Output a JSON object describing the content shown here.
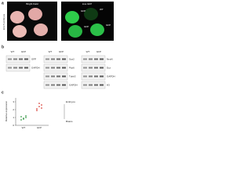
{
  "panel_a": {
    "label": "a",
    "side_label": "E12.5 embryos",
    "images": [
      {
        "title": "Bright Field"
      },
      {
        "title": "Live GFP",
        "tags": [
          "GFP",
          "WT",
          "GFP",
          "GFP"
        ]
      }
    ]
  },
  "panel_b": {
    "label": "b",
    "blots": [
      {
        "columns": [
          "WT",
          "GFP"
        ],
        "rows": [
          "GFP",
          "GAPDH"
        ]
      },
      {
        "columns": [
          "WT",
          "GFP"
        ],
        "rows": [
          "Sox2",
          "Pax6",
          "Tubb3",
          "GAPDH"
        ]
      },
      {
        "columns": [
          "WT",
          "GFP"
        ],
        "rows": [
          "NeuN",
          "Dcx",
          "GAPDH",
          "H3"
        ]
      }
    ]
  },
  "panel_c": {
    "label": "c",
    "y_label": "Relative expression",
    "ylim": [
      0,
      3.5
    ],
    "yticks": [
      0,
      1,
      2,
      3
    ],
    "groups": [
      {
        "name": "WT",
        "color": "#3a9a4a",
        "values": [
          0.7,
          0.9,
          1.0,
          1.1,
          0.8,
          1.2
        ]
      },
      {
        "name": "GFP",
        "color": "#d9463e",
        "values": [
          2.1,
          2.4,
          2.6,
          1.9,
          2.8,
          2.2
        ]
      }
    ],
    "legend": [
      "Embryos",
      "Brains"
    ]
  }
}
